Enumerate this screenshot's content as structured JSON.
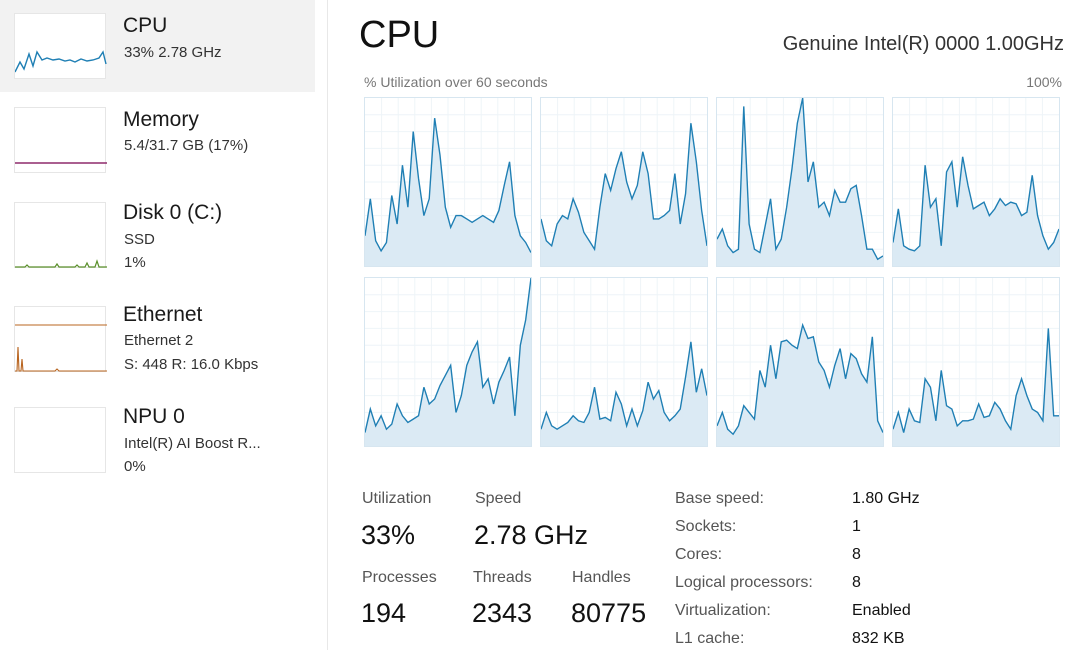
{
  "colors": {
    "cpu": "#1f7fb4",
    "cpu_fill": "#dbeaf4",
    "memory": "#8e2a6b",
    "disk": "#5a8f2a",
    "ethernet": "#b8641f",
    "selected_bg": "#f2f2f2"
  },
  "sidebar": {
    "items": [
      {
        "title": "CPU",
        "lines": [
          "33%  2.78 GHz"
        ],
        "icon": "cpu-sparkline",
        "selected": true
      },
      {
        "title": "Memory",
        "lines": [
          "5.4/31.7 GB (17%)"
        ],
        "icon": "memory-sparkline"
      },
      {
        "title": "Disk 0 (C:)",
        "lines": [
          "SSD",
          "1%"
        ],
        "icon": "disk-sparkline"
      },
      {
        "title": "Ethernet",
        "lines": [
          "Ethernet 2",
          "S: 448  R: 16.0 Kbps"
        ],
        "icon": "ethernet-sparkline"
      },
      {
        "title": "NPU 0",
        "lines": [
          "Intel(R) AI Boost  R...",
          "0%"
        ],
        "icon": "npu-sparkline"
      }
    ]
  },
  "header": {
    "title": "CPU",
    "cpu_name": "Genuine Intel(R) 0000 1.00GHz",
    "graph_label": "% Utilization over 60 seconds",
    "graph_max": "100%"
  },
  "core_graphs": [
    [
      18,
      40,
      15,
      9,
      14,
      42,
      25,
      60,
      35,
      80,
      52,
      30,
      40,
      88,
      66,
      35,
      23,
      30,
      30,
      28,
      26,
      28,
      30,
      28,
      26,
      33,
      48,
      62,
      30,
      18,
      14,
      8
    ],
    [
      28,
      15,
      12,
      25,
      30,
      28,
      40,
      32,
      20,
      15,
      10,
      35,
      55,
      45,
      58,
      68,
      50,
      40,
      48,
      68,
      55,
      28,
      28,
      30,
      33,
      55,
      25,
      43,
      85,
      62,
      33,
      12
    ],
    [
      16,
      22,
      12,
      8,
      10,
      95,
      25,
      10,
      8,
      24,
      40,
      10,
      16,
      35,
      58,
      85,
      100,
      50,
      62,
      35,
      38,
      30,
      45,
      38,
      38,
      46,
      48,
      30,
      10,
      10,
      4,
      6
    ],
    [
      14,
      34,
      12,
      10,
      9,
      12,
      60,
      35,
      40,
      12,
      56,
      62,
      35,
      65,
      48,
      34,
      36,
      38,
      30,
      34,
      40,
      36,
      38,
      37,
      30,
      32,
      54,
      30,
      18,
      10,
      14,
      22
    ],
    [
      8,
      22,
      12,
      18,
      10,
      13,
      25,
      18,
      14,
      16,
      18,
      35,
      25,
      28,
      36,
      42,
      48,
      20,
      30,
      48,
      56,
      62,
      35,
      40,
      25,
      38,
      45,
      53,
      18,
      60,
      75,
      100
    ],
    [
      10,
      20,
      12,
      10,
      12,
      14,
      18,
      15,
      14,
      20,
      35,
      16,
      17,
      15,
      32,
      25,
      12,
      22,
      12,
      21,
      38,
      28,
      33,
      20,
      15,
      18,
      22,
      41,
      62,
      32,
      46,
      30
    ],
    [
      12,
      20,
      10,
      7,
      12,
      24,
      20,
      16,
      45,
      35,
      60,
      40,
      62,
      63,
      60,
      58,
      72,
      64,
      65,
      50,
      45,
      35,
      48,
      58,
      40,
      55,
      52,
      43,
      38,
      65,
      15,
      8
    ],
    [
      10,
      20,
      8,
      22,
      15,
      14,
      40,
      35,
      15,
      45,
      24,
      22,
      12,
      15,
      15,
      16,
      25,
      17,
      18,
      26,
      22,
      15,
      10,
      30,
      40,
      30,
      22,
      20,
      15,
      70,
      18,
      18
    ]
  ],
  "stats": {
    "utilization_label": "Utilization",
    "utilization_value": "33%",
    "speed_label": "Speed",
    "speed_value": "2.78 GHz",
    "processes_label": "Processes",
    "processes_value": "194",
    "threads_label": "Threads",
    "threads_value": "2343",
    "handles_label": "Handles",
    "handles_value": "80775"
  },
  "details": [
    {
      "key": "Base speed:",
      "value": "1.80 GHz"
    },
    {
      "key": "Sockets:",
      "value": "1"
    },
    {
      "key": "Cores:",
      "value": "8"
    },
    {
      "key": "Logical processors:",
      "value": "8"
    },
    {
      "key": "Virtualization:",
      "value": "Enabled"
    },
    {
      "key": "L1 cache:",
      "value": "832 KB"
    }
  ]
}
